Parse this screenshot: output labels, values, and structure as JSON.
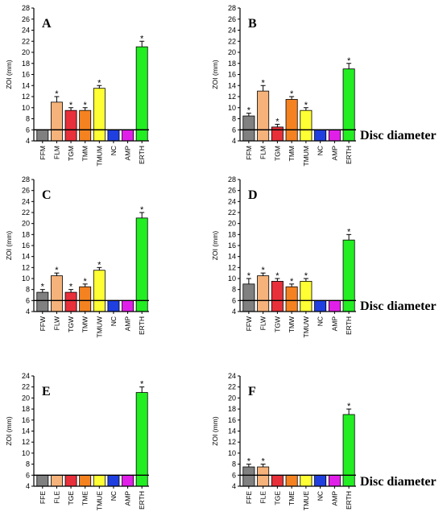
{
  "colors": {
    "grey": "#808080",
    "peach": "#f5b27a",
    "red": "#e8303a",
    "orange": "#f58220",
    "yellow": "#ffff33",
    "blue": "#1f3fe0",
    "magenta": "#e020e8",
    "green": "#22ee22"
  },
  "disc_label": "Disc diameter",
  "chart_data": [
    {
      "type": "bar",
      "panel_label": "A",
      "ylabel": "ZOI (mm)",
      "ylim": [
        4,
        28
      ],
      "yticks": [
        4,
        6,
        8,
        10,
        12,
        14,
        16,
        18,
        20,
        22,
        24,
        26,
        28
      ],
      "reference_line": 6,
      "categories": [
        "FFM",
        "FLM",
        "TGM",
        "TMM",
        "TMUM",
        "NC",
        "AMP",
        "ERTH"
      ],
      "values": [
        6,
        11,
        9.5,
        9.5,
        13.5,
        6,
        6,
        21
      ],
      "errors": [
        0,
        1,
        0.5,
        0.5,
        0.5,
        0,
        0,
        1
      ],
      "significant": [
        false,
        true,
        true,
        true,
        true,
        false,
        false,
        true
      ],
      "bar_colors": [
        "grey",
        "peach",
        "red",
        "orange",
        "yellow",
        "blue",
        "magenta",
        "green"
      ]
    },
    {
      "type": "bar",
      "panel_label": "B",
      "ylabel": "ZOI (mm)",
      "ylim": [
        4,
        28
      ],
      "yticks": [
        4,
        6,
        8,
        10,
        12,
        14,
        16,
        18,
        20,
        22,
        24,
        26,
        28
      ],
      "reference_line": 6,
      "categories": [
        "FFM",
        "FLM",
        "TGM",
        "TMM",
        "TMUM",
        "NC",
        "AMP",
        "ERTH"
      ],
      "values": [
        8.5,
        13,
        6.5,
        11.5,
        9.5,
        6,
        6,
        17
      ],
      "errors": [
        0.5,
        1,
        0.5,
        0.5,
        0.5,
        0,
        0,
        1
      ],
      "significant": [
        true,
        true,
        true,
        true,
        true,
        false,
        false,
        true
      ],
      "bar_colors": [
        "grey",
        "peach",
        "red",
        "orange",
        "yellow",
        "blue",
        "magenta",
        "green"
      ]
    },
    {
      "type": "bar",
      "panel_label": "C",
      "ylabel": "ZOI (mm)",
      "ylim": [
        4,
        28
      ],
      "yticks": [
        4,
        6,
        8,
        10,
        12,
        14,
        16,
        18,
        20,
        22,
        24,
        26,
        28
      ],
      "reference_line": 6,
      "categories": [
        "FFW",
        "FLW",
        "TGW",
        "TMW",
        "TMUW",
        "NC",
        "AMP",
        "ERTH"
      ],
      "values": [
        7.5,
        10.5,
        7.5,
        8.5,
        11.5,
        6,
        6,
        21
      ],
      "errors": [
        0.5,
        0.5,
        0.5,
        0.5,
        0.5,
        0,
        0,
        1
      ],
      "significant": [
        true,
        true,
        true,
        true,
        true,
        false,
        false,
        true
      ],
      "bar_colors": [
        "grey",
        "peach",
        "red",
        "orange",
        "yellow",
        "blue",
        "magenta",
        "green"
      ]
    },
    {
      "type": "bar",
      "panel_label": "D",
      "ylabel": "ZOI (mm)",
      "ylim": [
        4,
        28
      ],
      "yticks": [
        4,
        6,
        8,
        10,
        12,
        14,
        16,
        18,
        20,
        22,
        24,
        26,
        28
      ],
      "reference_line": 6,
      "categories": [
        "FFW",
        "FLW",
        "TGW",
        "TMW",
        "TMUW",
        "NC",
        "AMP",
        "ERTH"
      ],
      "values": [
        9,
        10.5,
        9.5,
        8.5,
        9.5,
        6,
        6,
        17
      ],
      "errors": [
        1,
        0.5,
        0.5,
        0.5,
        0.5,
        0,
        0,
        1
      ],
      "significant": [
        true,
        true,
        true,
        true,
        true,
        false,
        false,
        true
      ],
      "bar_colors": [
        "grey",
        "peach",
        "red",
        "orange",
        "yellow",
        "blue",
        "magenta",
        "green"
      ]
    },
    {
      "type": "bar",
      "panel_label": "E",
      "ylabel": "ZOI (mm)",
      "ylim": [
        4,
        24
      ],
      "yticks": [
        4,
        6,
        8,
        10,
        12,
        14,
        16,
        18,
        20,
        22,
        24
      ],
      "reference_line": 6,
      "categories": [
        "FFE",
        "FLE",
        "TGE",
        "TME",
        "TMUE",
        "NC",
        "AMP",
        "ERTH"
      ],
      "values": [
        6,
        6,
        6,
        6,
        6,
        6,
        6,
        21
      ],
      "errors": [
        0,
        0,
        0,
        0,
        0,
        0,
        0,
        1
      ],
      "significant": [
        false,
        false,
        false,
        false,
        false,
        false,
        false,
        true
      ],
      "bar_colors": [
        "grey",
        "peach",
        "red",
        "orange",
        "yellow",
        "blue",
        "magenta",
        "green"
      ]
    },
    {
      "type": "bar",
      "panel_label": "F",
      "ylabel": "ZOI (mm)",
      "ylim": [
        4,
        24
      ],
      "yticks": [
        4,
        6,
        8,
        10,
        12,
        14,
        16,
        18,
        20,
        22,
        24
      ],
      "reference_line": 6,
      "categories": [
        "FFE",
        "FLE",
        "TGE",
        "TME",
        "TMUE",
        "NC",
        "AMP",
        "ERTH"
      ],
      "values": [
        7.5,
        7.5,
        6,
        6,
        6,
        6,
        6,
        17
      ],
      "errors": [
        0.5,
        0.5,
        0,
        0,
        0,
        0,
        0,
        1
      ],
      "significant": [
        true,
        true,
        false,
        false,
        false,
        false,
        false,
        true
      ],
      "bar_colors": [
        "grey",
        "peach",
        "red",
        "orange",
        "yellow",
        "blue",
        "magenta",
        "green"
      ]
    }
  ]
}
